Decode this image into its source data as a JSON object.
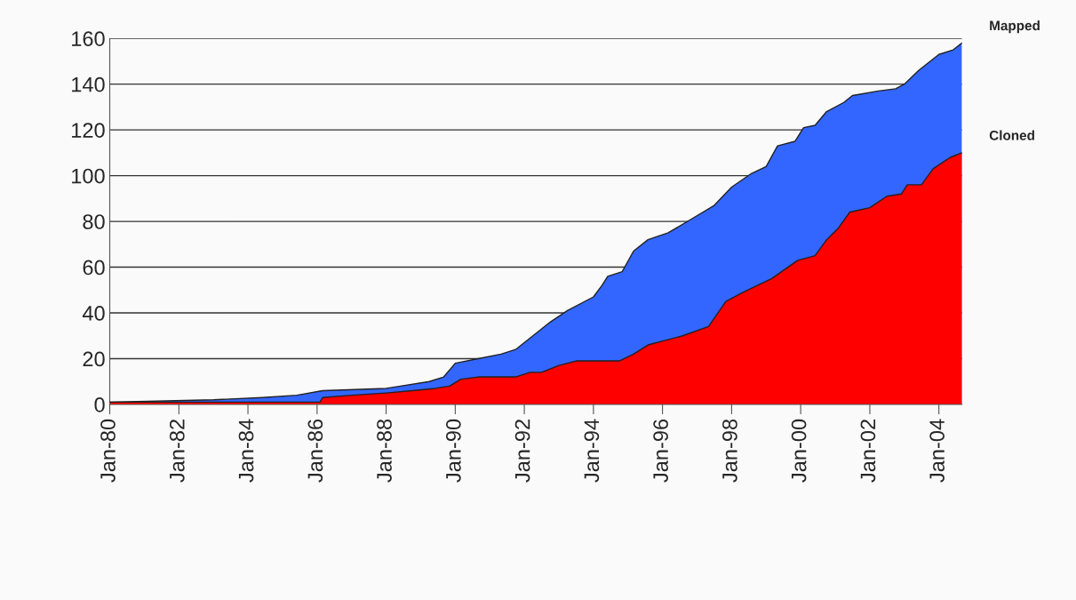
{
  "chart_data": {
    "type": "area",
    "series": [
      {
        "name": "Mapped",
        "color": "#3366ff",
        "x": [
          "1980-01",
          "1983-01",
          "1984-06",
          "1985-06",
          "1986-03",
          "1988-01",
          "1988-06",
          "1989-04",
          "1989-09",
          "1990-01",
          "1990-09",
          "1991-05",
          "1991-10",
          "1992-05",
          "1992-10",
          "1993-04",
          "1994-01",
          "1994-04",
          "1994-06",
          "1994-11",
          "1995-03",
          "1995-08",
          "1996-03",
          "1996-11",
          "1997-07",
          "1998-01",
          "1998-08",
          "1999-01",
          "1999-05",
          "1999-11",
          "2000-02",
          "2000-06",
          "2000-10",
          "2001-04",
          "2001-07",
          "2002-04",
          "2002-10",
          "2003-01",
          "2003-06",
          "2004-01",
          "2004-06",
          "2004-09"
        ],
        "values": [
          1,
          2,
          3,
          4,
          6,
          7,
          8,
          10,
          12,
          18,
          20,
          22,
          24,
          31,
          36,
          41,
          47,
          52,
          56,
          58,
          67,
          72,
          75,
          81,
          87,
          95,
          101,
          104,
          113,
          115,
          121,
          122,
          128,
          132,
          135,
          137,
          138,
          140,
          146,
          153,
          155,
          158
        ]
      },
      {
        "name": "Cloned",
        "color": "#ff0000",
        "x": [
          "1980-01",
          "1986-02",
          "1986-03",
          "1987-01",
          "1988-01",
          "1988-10",
          "1989-06",
          "1989-11",
          "1990-03",
          "1990-09",
          "1991-10",
          "1992-03",
          "1992-07",
          "1993-01",
          "1993-07",
          "1994-10",
          "1995-03",
          "1995-08",
          "1996-02",
          "1996-08",
          "1997-05",
          "1997-11",
          "1998-05",
          "1999-03",
          "1999-12",
          "2000-06",
          "2000-10",
          "2001-02",
          "2001-06",
          "2002-01",
          "2002-07",
          "2002-12",
          "2003-02",
          "2003-07",
          "2003-11",
          "2004-05",
          "2004-09"
        ],
        "values": [
          1,
          1,
          3,
          4,
          5,
          6,
          7,
          8,
          11,
          12,
          12,
          14,
          14,
          17,
          19,
          19,
          22,
          26,
          28,
          30,
          34,
          45,
          49,
          55,
          63,
          65,
          72,
          77,
          84,
          86,
          91,
          92,
          96,
          96,
          103,
          108,
          110
        ]
      }
    ],
    "xlim": [
      "1980-01",
      "2004-09"
    ],
    "xticks": [
      {
        "value": "1980-01",
        "label": "Jan-80"
      },
      {
        "value": "1982-01",
        "label": "Jan-82"
      },
      {
        "value": "1984-01",
        "label": "Jan-84"
      },
      {
        "value": "1986-01",
        "label": "Jan-86"
      },
      {
        "value": "1988-01",
        "label": "Jan-88"
      },
      {
        "value": "1990-01",
        "label": "Jan-90"
      },
      {
        "value": "1992-01",
        "label": "Jan-92"
      },
      {
        "value": "1994-01",
        "label": "Jan-94"
      },
      {
        "value": "1996-01",
        "label": "Jan-96"
      },
      {
        "value": "1998-01",
        "label": "Jan-98"
      },
      {
        "value": "2000-01",
        "label": "Jan-00"
      },
      {
        "value": "2002-01",
        "label": "Jan-02"
      },
      {
        "value": "2004-01",
        "label": "Jan-04"
      }
    ],
    "ylim": [
      0,
      160
    ],
    "yticks": [
      0,
      20,
      40,
      60,
      80,
      100,
      120,
      140,
      160
    ],
    "grid": "y",
    "legend": false
  }
}
